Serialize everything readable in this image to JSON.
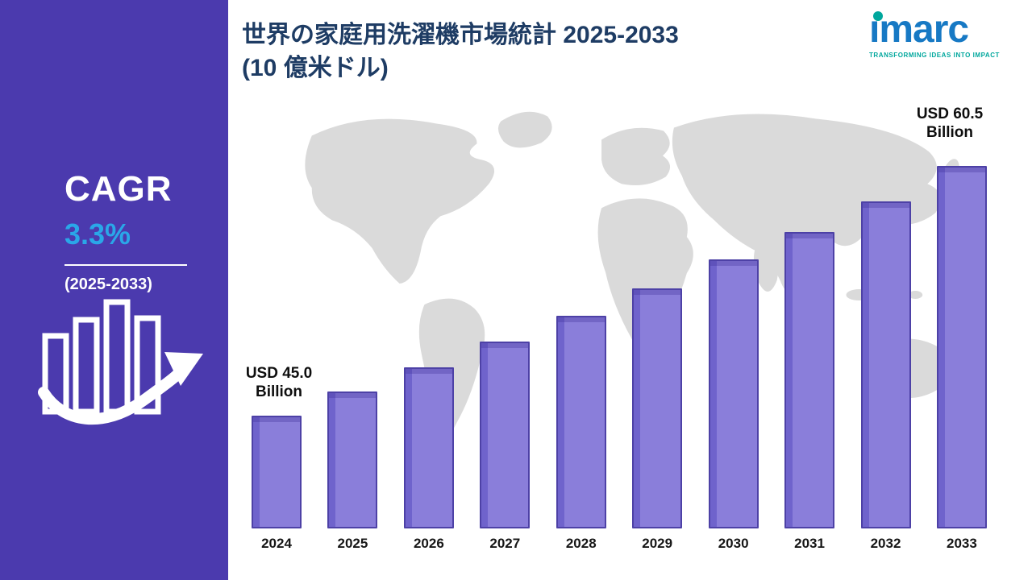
{
  "sidebar": {
    "cagr_label": "CAGR",
    "cagr_value": "3.3%",
    "cagr_period": "(2025-2033)"
  },
  "header": {
    "title_line1": "世界の家庭用洗濯機市場統計 2025-2033",
    "title_line2": "(10 億米ドル)",
    "logo_brand": "ımarc",
    "logo_tagline": "TRANSFORMING IDEAS INTO IMPACT"
  },
  "chart_data": {
    "type": "bar",
    "title": "世界の家庭用洗濯機市場統計 2025-2033 (10 億米ドル)",
    "xlabel": "",
    "ylabel": "USD Billion",
    "categories": [
      "2024",
      "2025",
      "2026",
      "2027",
      "2028",
      "2029",
      "2030",
      "2031",
      "2032",
      "2033"
    ],
    "values": [
      45.0,
      46.5,
      48.0,
      49.6,
      51.2,
      52.9,
      54.7,
      56.4,
      58.3,
      60.5
    ],
    "first_label": "USD 45.0\nBillion",
    "last_label": "USD 60.5\nBillion",
    "ylim": [
      38,
      61.5
    ],
    "grid": false,
    "legend": "none",
    "cagr": "3.3%",
    "cagr_period": "2025-2033"
  },
  "colors": {
    "sidebar_bg": "#4b3aae",
    "bar_fill": "#8a7eda",
    "bar_edge": "#4d41a6",
    "accent_blue": "#2aa7e8",
    "title_navy": "#1e3c64",
    "logo_blue": "#1779c4",
    "logo_teal": "#00a79d",
    "map_gray": "#dadada"
  }
}
